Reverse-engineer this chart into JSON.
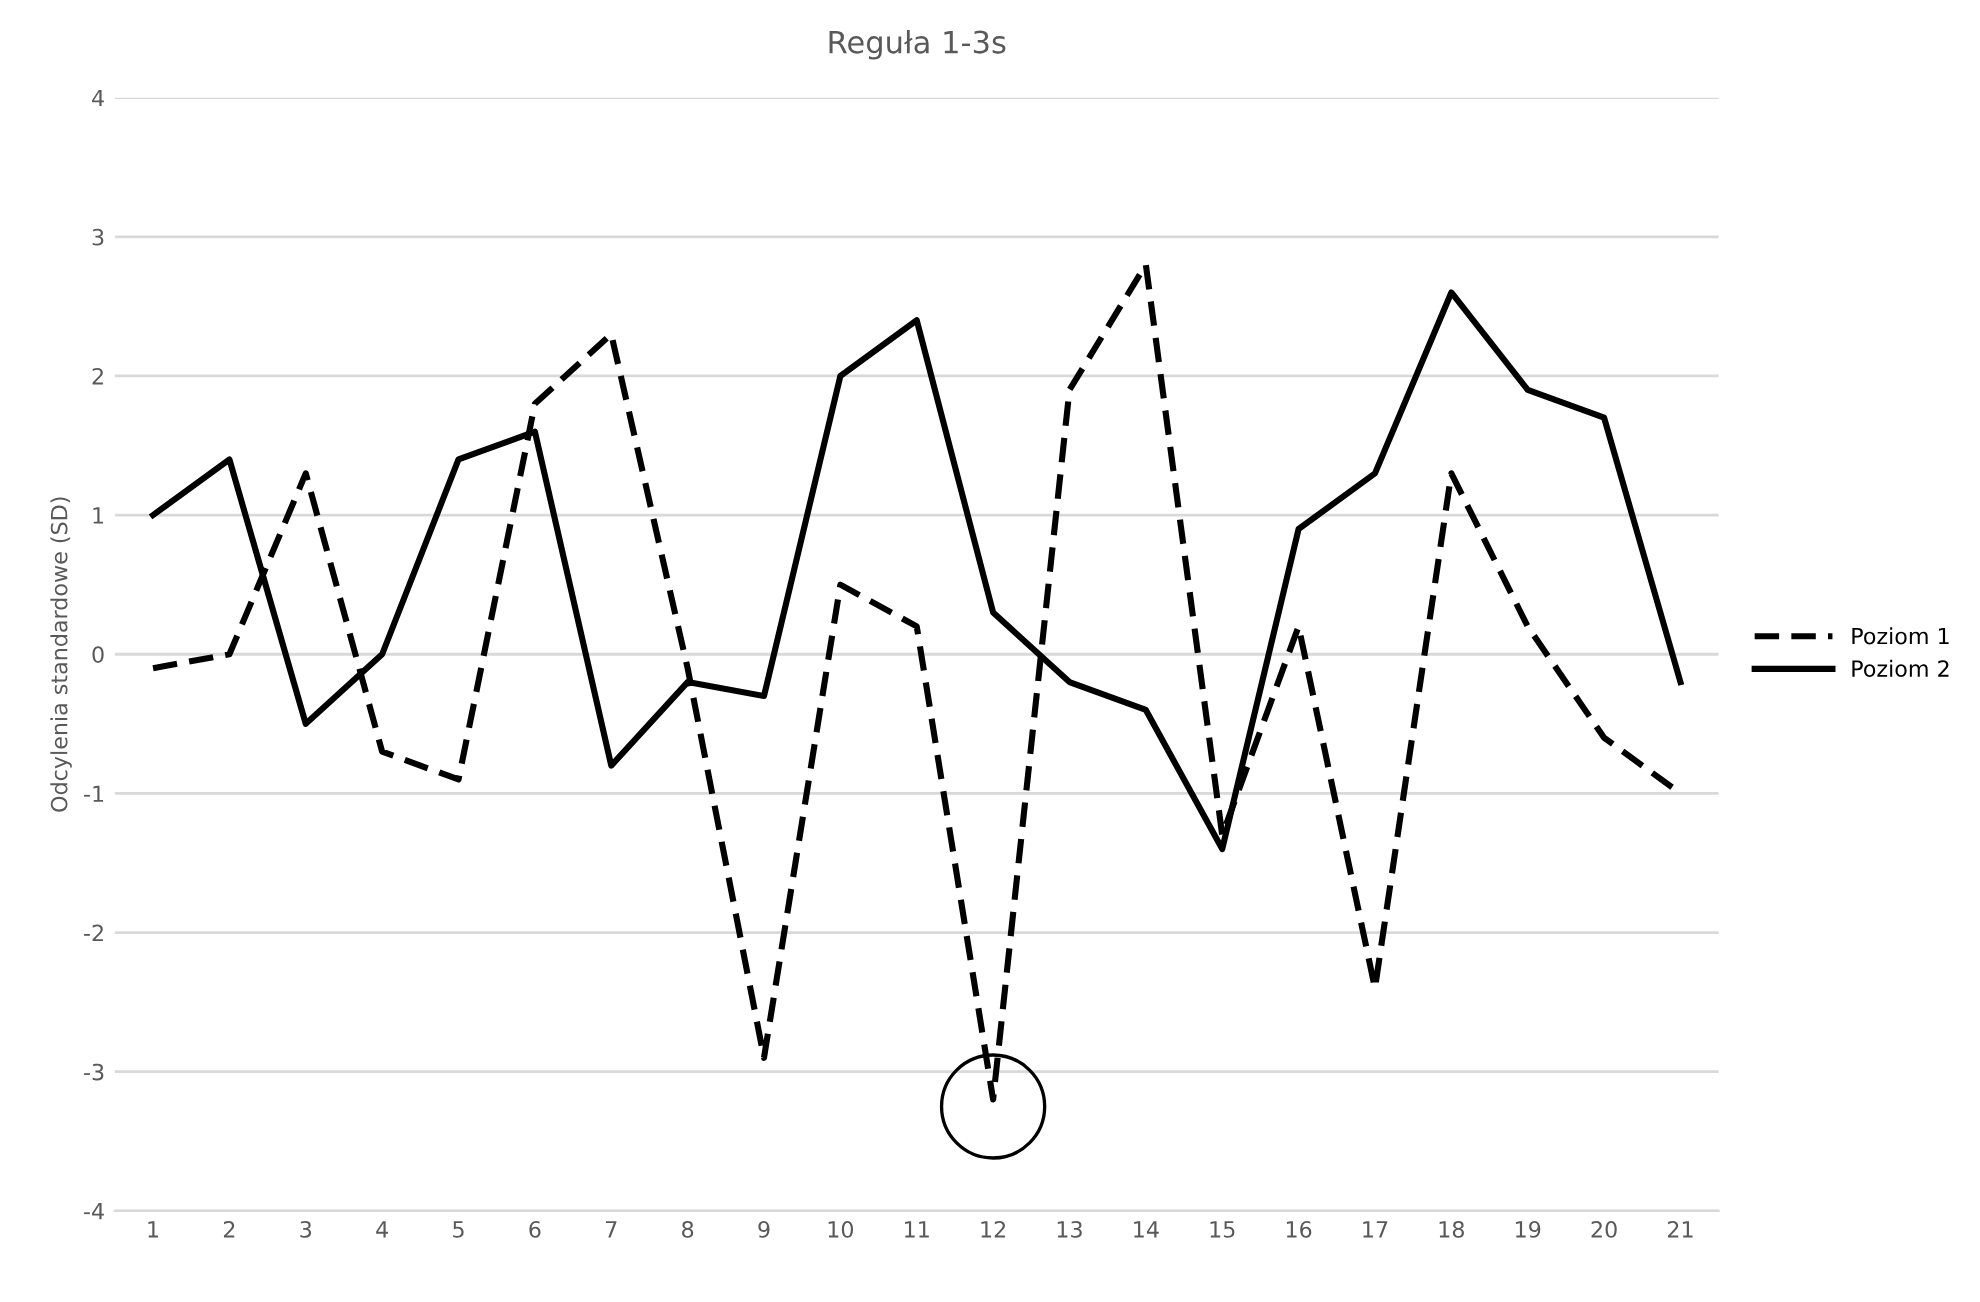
{
  "chart_data": {
    "type": "line",
    "title": "Reguła 1-3s",
    "ylabel": "Odcylenia standardowe (SD)",
    "categories": [
      "1",
      "2",
      "3",
      "4",
      "5",
      "6",
      "7",
      "8",
      "9",
      "10",
      "11",
      "12",
      "13",
      "14",
      "15",
      "16",
      "17",
      "18",
      "19",
      "20",
      "21"
    ],
    "series": [
      {
        "name": "Poziom 1",
        "color": "#000000",
        "line_style": "dashed",
        "values": [
          -0.1,
          0.0,
          1.3,
          -0.7,
          -0.9,
          1.8,
          2.3,
          -0.1,
          -2.9,
          0.5,
          0.2,
          -3.2,
          1.9,
          2.8,
          -1.3,
          0.2,
          -2.4,
          1.3,
          0.2,
          -0.6,
          -1.0
        ]
      },
      {
        "name": "Poziom 2",
        "color": "#000000",
        "line_style": "solid",
        "values": [
          1.0,
          1.4,
          -0.5,
          0.0,
          1.4,
          1.6,
          -0.8,
          -0.2,
          -0.3,
          2.0,
          2.4,
          0.3,
          -0.2,
          -0.4,
          -1.4,
          0.9,
          1.3,
          2.6,
          1.9,
          1.7,
          -0.2
        ]
      }
    ],
    "ylim": [
      -4,
      4
    ],
    "yticks": [
      -4,
      -3,
      -2,
      -1,
      0,
      1,
      2,
      3,
      4
    ],
    "grid": "y",
    "legend": "right",
    "marker": "none"
  }
}
